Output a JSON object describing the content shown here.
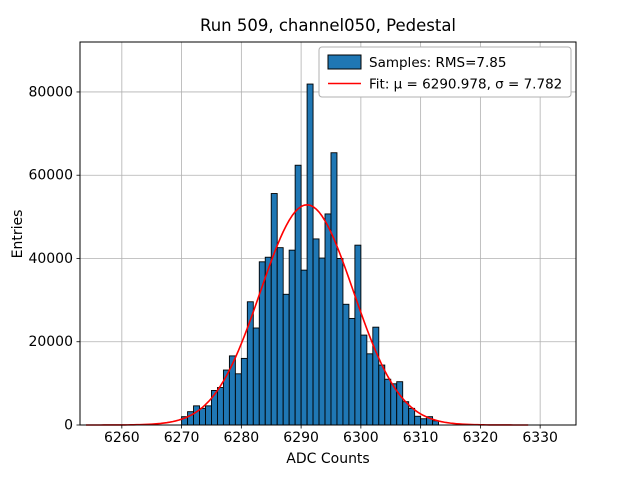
{
  "chart_data": {
    "type": "bar",
    "title": "Run 509, channel050, Pedestal",
    "xlabel": "ADC Counts",
    "ylabel": "Entries",
    "xlim": [
      6253,
      6336
    ],
    "ylim": [
      0,
      92000
    ],
    "xticks": [
      6260,
      6270,
      6280,
      6290,
      6300,
      6310,
      6320,
      6330
    ],
    "yticks": [
      0,
      20000,
      40000,
      60000,
      80000
    ],
    "grid": true,
    "legend_position": "upper right",
    "histogram": {
      "bin_start": 6270,
      "bin_width": 1,
      "values": [
        2000,
        3200,
        4600,
        4000,
        4600,
        8300,
        9000,
        13200,
        16600,
        12300,
        16000,
        29600,
        23300,
        39200,
        40300,
        55600,
        42600,
        31400,
        42000,
        62400,
        37200,
        81900,
        44700,
        40100,
        50700,
        65400,
        40000,
        29000,
        25600,
        43200,
        21600,
        17100,
        23500,
        14400,
        11000,
        9900,
        10400,
        5600,
        4000,
        2100,
        1500,
        2000,
        1000
      ]
    },
    "fit": {
      "mu": 6290.978,
      "sigma": 7.782,
      "amplitude": 52900,
      "x_range": [
        6254,
        6328
      ]
    },
    "legend": {
      "samples_label": "Samples: RMS=7.85",
      "fit_label": "Fit: μ = 6290.978, σ = 7.782"
    },
    "colors": {
      "bar_fill": "#1f77b4",
      "bar_edge": "#000000",
      "fit_line": "#ff0000",
      "grid": "#b0b0b0"
    }
  }
}
